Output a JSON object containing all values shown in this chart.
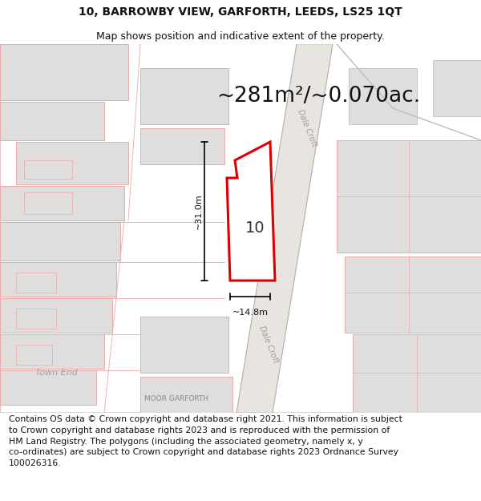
{
  "title": "10, BARROWBY VIEW, GARFORTH, LEEDS, LS25 1QT",
  "subtitle": "Map shows position and indicative extent of the property.",
  "area_text": "~281m²/~0.070ac.",
  "dim_width": "~14.8m",
  "dim_height": "~31.0m",
  "property_number": "10",
  "street_label_upper": "Dale Croft",
  "street_label_lower": "Dale Croft",
  "town_end_label": "Town End",
  "moor_garforth_label": "MOOR GARFORTH",
  "footer_lines": [
    "Contains OS data © Crown copyright and database right 2021. This information is subject",
    "to Crown copyright and database rights 2023 and is reproduced with the permission of",
    "HM Land Registry. The polygons (including the associated geometry, namely x, y",
    "co-ordinates) are subject to Crown copyright and database rights 2023 Ordnance Survey",
    "100026316."
  ],
  "map_bg": "#f7f4f2",
  "building_fill": "#e0dedd",
  "building_edge_pink": "#e8aaaa",
  "building_edge_grey": "#c8c4c0",
  "road_fill": "#eeebe8",
  "road_edge": "#d8d0c8",
  "property_color": "#dd0000",
  "property_fill": "#ffffff",
  "dim_color": "#000000",
  "text_dark": "#111111",
  "text_grey": "#aaaaaa",
  "title_fontsize": 10,
  "subtitle_fontsize": 9,
  "area_fontsize": 19,
  "prop_num_fontsize": 14,
  "dim_fontsize": 8,
  "street_fontsize": 7,
  "label_fontsize": 8,
  "footer_fontsize": 7.8
}
